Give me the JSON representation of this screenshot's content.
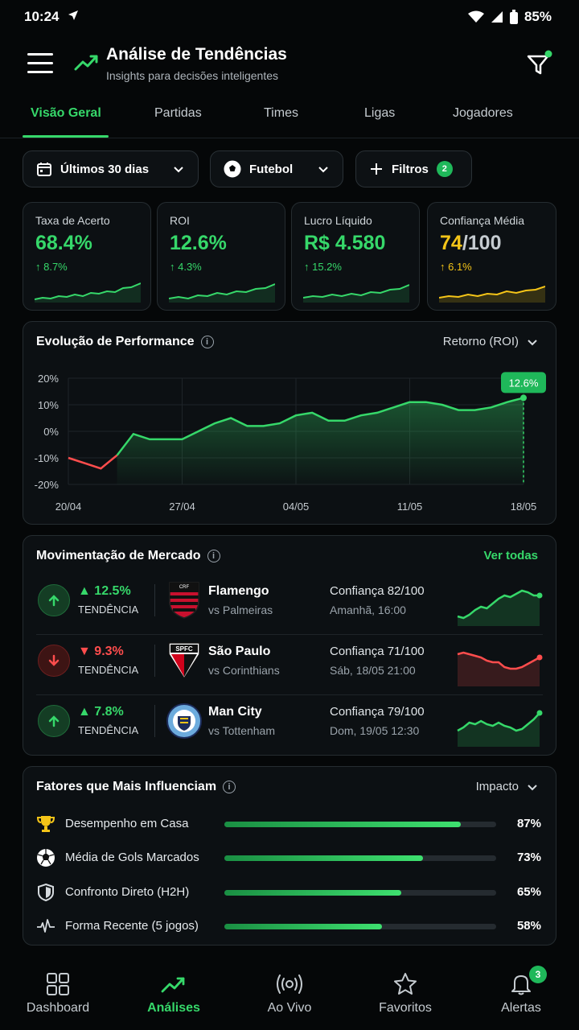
{
  "status_bar": {
    "time": "10:24",
    "battery": "85%"
  },
  "header": {
    "title": "Análise de Tendências",
    "subtitle": "Insights para decisões inteligentes"
  },
  "tabs": [
    {
      "label": "Visão Geral",
      "active": true
    },
    {
      "label": "Partidas"
    },
    {
      "label": "Times"
    },
    {
      "label": "Ligas"
    },
    {
      "label": "Jogadores"
    }
  ],
  "filters": {
    "period": "Últimos 30 dias",
    "sport": "Futebol",
    "filters_label": "Filtros",
    "filters_count": "2"
  },
  "kpis": [
    {
      "label": "Taxa de Acerto",
      "value": "68.4%",
      "delta": "↑ 8.7%",
      "color": "#36d86a"
    },
    {
      "label": "ROI",
      "value": "12.6%",
      "delta": "↑ 4.3%",
      "color": "#36d86a"
    },
    {
      "label": "Lucro Líquido",
      "value": "R$ 4.580",
      "delta": "↑ 15.2%",
      "color": "#36d86a"
    },
    {
      "label": "Confiança Média",
      "value_main": "74",
      "value_rest": "/100",
      "delta": "↑ 6.1%",
      "color": "#f5c518"
    }
  ],
  "performance": {
    "title": "Evolução de Performance",
    "metric_select": "Retorno (ROI)",
    "current_label": "12.6%"
  },
  "chart_data": {
    "type": "line",
    "title": "Evolução de Performance",
    "ylabel": "",
    "x_tick_labels": [
      "20/04",
      "27/04",
      "04/05",
      "11/05",
      "18/05"
    ],
    "y_tick_labels": [
      "20%",
      "10%",
      "0%",
      "-10%",
      "-20%"
    ],
    "ylim": [
      -20,
      20
    ],
    "grid": true,
    "x": [
      "20/04",
      "21/04",
      "22/04",
      "23/04",
      "24/04",
      "25/04",
      "26/04",
      "27/04",
      "28/04",
      "29/04",
      "30/04",
      "01/05",
      "02/05",
      "03/05",
      "04/05",
      "05/05",
      "06/05",
      "07/05",
      "08/05",
      "09/05",
      "10/05",
      "11/05",
      "12/05",
      "13/05",
      "14/05",
      "15/05",
      "16/05",
      "17/05",
      "18/05"
    ],
    "series": [
      {
        "values": [
          -10,
          -12,
          -14,
          -9,
          -1,
          -3,
          -3,
          -3,
          0,
          3,
          5,
          2,
          2,
          3,
          6,
          7,
          4,
          4,
          6,
          7,
          9,
          11,
          11,
          10,
          8,
          8,
          9,
          11,
          12.6
        ]
      }
    ]
  },
  "market": {
    "title": "Movimentação de Mercado",
    "see_all": "Ver todas",
    "rows": [
      {
        "direction": "up",
        "trend": "12.5%",
        "trend_label": "TENDÊNCIA",
        "team": "Flamengo",
        "opponent": "vs Palmeiras",
        "confidence": "Confiança 82/100",
        "when": "Amanhã, 16:00",
        "spark": [
          4,
          3,
          5,
          8,
          10,
          9,
          12,
          15,
          17,
          16,
          18,
          20,
          19,
          17,
          17
        ]
      },
      {
        "direction": "down",
        "trend": "9.3%",
        "trend_label": "TENDÊNCIA",
        "team": "São Paulo",
        "opponent": "vs Corinthians",
        "confidence": "Confiança 71/100",
        "when": "Sáb, 18/05 21:00",
        "spark": [
          18,
          19,
          18,
          17,
          16,
          14,
          13,
          13,
          10,
          9,
          9,
          10,
          12,
          14,
          16
        ]
      },
      {
        "direction": "up",
        "trend": "7.8%",
        "trend_label": "TENDÊNCIA",
        "team": "Man City",
        "opponent": "vs Tottenham",
        "confidence": "Confiança 79/100",
        "when": "Dom, 19/05 12:30",
        "spark": [
          8,
          10,
          13,
          12,
          14,
          12,
          11,
          13,
          11,
          10,
          8,
          9,
          12,
          15,
          19
        ]
      }
    ]
  },
  "factors": {
    "title": "Fatores que Mais Influenciam",
    "sort": "Impacto",
    "items": [
      {
        "icon": "trophy-icon",
        "label": "Desempenho em Casa",
        "value": 0.87,
        "pct": "87%"
      },
      {
        "icon": "soccer-ball-icon",
        "label": "Média de Gols Marcados",
        "value": 0.73,
        "pct": "73%"
      },
      {
        "icon": "shield-icon",
        "label": "Confronto Direto (H2H)",
        "value": 0.65,
        "pct": "65%"
      },
      {
        "icon": "pulse-icon",
        "label": "Forma Recente (5 jogos)",
        "value": 0.58,
        "pct": "58%"
      }
    ]
  },
  "bottom_nav": [
    {
      "label": "Dashboard"
    },
    {
      "label": "Análises",
      "active": true
    },
    {
      "label": "Ao Vivo"
    },
    {
      "label": "Favoritos"
    },
    {
      "label": "Alertas",
      "badge": "3"
    }
  ]
}
